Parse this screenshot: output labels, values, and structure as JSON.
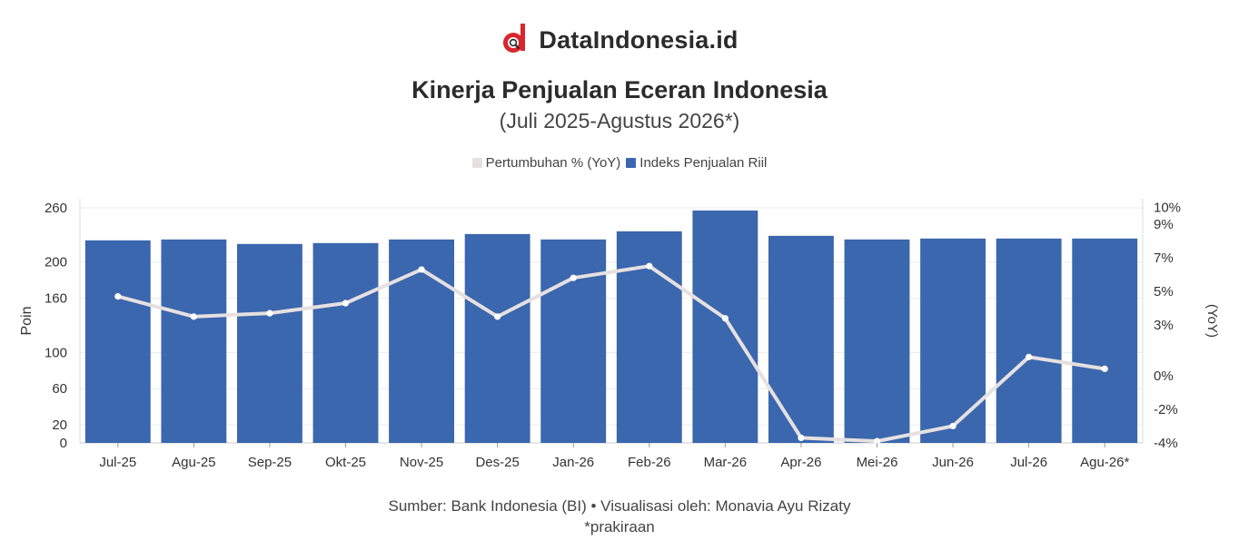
{
  "brand": {
    "name": "DataIndonesia.id",
    "accent": "#d9262c"
  },
  "chart_data": {
    "type": "bar",
    "title": "Kinerja Penjualan Eceran Indonesia",
    "subtitle": "(Juli 2025-Agustus 2026*)",
    "categories": [
      "Jul-25",
      "Agu-25",
      "Sep-25",
      "Okt-25",
      "Nov-25",
      "Des-25",
      "Jan-26",
      "Feb-26",
      "Mar-26",
      "Apr-26",
      "Mei-26",
      "Jun-26",
      "Jul-26",
      "Agu-26*"
    ],
    "series": [
      {
        "name": "Indeks Penjualan Riil",
        "type": "bar",
        "axis": "left",
        "color": "#3a67ae",
        "values": [
          224,
          225,
          220,
          221,
          225,
          231,
          225,
          234,
          257,
          229,
          225,
          226,
          226,
          226
        ]
      },
      {
        "name": "Pertumbuhan % (YoY)",
        "type": "line",
        "axis": "right",
        "color": "#e6e0e0",
        "values": [
          4.7,
          3.5,
          3.7,
          4.3,
          6.3,
          3.5,
          5.8,
          6.5,
          3.4,
          -3.7,
          -3.9,
          -3.0,
          1.1,
          0.4
        ]
      }
    ],
    "ylabel": "Poin",
    "y2label": "(YoY)",
    "ylim": [
      0,
      270
    ],
    "y2lim": [
      -4,
      10.5
    ],
    "yticks": [
      0,
      20,
      60,
      100,
      160,
      200,
      260
    ],
    "y2ticks": [
      -4,
      -2,
      0,
      3,
      5,
      7,
      9,
      10
    ],
    "y2tick_labels": [
      "-4%",
      "-2%",
      "0%",
      "3%",
      "5%",
      "7%",
      "9%",
      "10%"
    ],
    "grid": true,
    "legend_position": "top-center"
  },
  "footer": {
    "source": "Sumber: Bank Indonesia (BI) • Visualisasi oleh: Monavia Ayu Rizaty",
    "note": "*prakiraan"
  }
}
